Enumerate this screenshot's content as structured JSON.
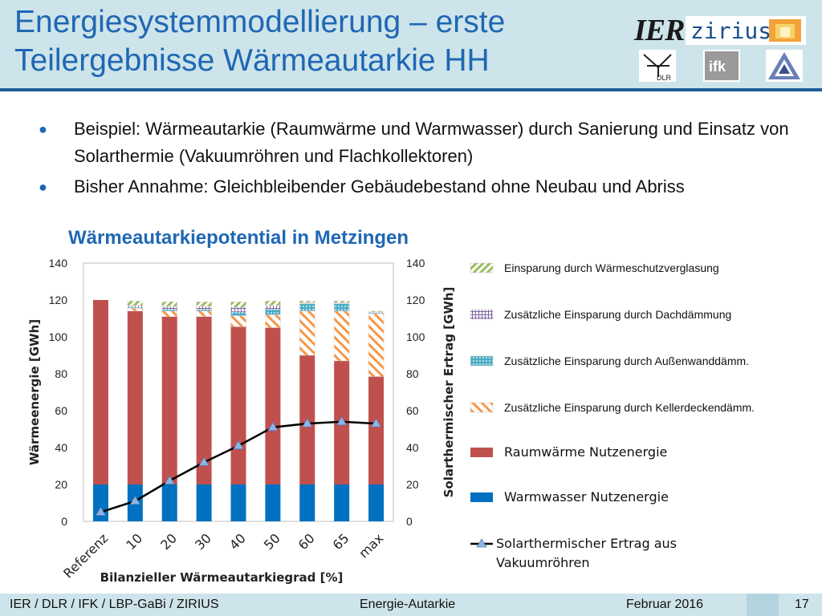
{
  "slide": {
    "title": "Energiesystemmodellierung – erste Teilergebnisse Wärmeautarkie HH",
    "logos": [
      "IER",
      "zirius",
      "DLR",
      "ifk",
      "LBP-GaBi"
    ],
    "bullets": [
      "Beispiel: Wärmeautarkie (Raumwärme und Warmwasser) durch Sanierung und Einsatz von Solarthermie (Vakuumröhren und Flachkollektoren)",
      "Bisher Annahme: Gleichbleibender Gebäudebestand ohne Neubau und Abriss"
    ],
    "bullet_symbol": "●"
  },
  "footer": {
    "left": "IER / DLR / IFK / LBP-GaBi / ZIRIUS",
    "center": "Energie-Autarkie",
    "date": "Februar 2016",
    "page": "17"
  },
  "colors": {
    "title": "#1f67b4",
    "header_bg": "#cde4ea",
    "raumwaerme": "#c0504d",
    "warmwasser": "#0070c0",
    "fenster": "#9bbb59",
    "dach": "#8064a2",
    "aussenwand": "#4bacc6",
    "kellerdecke": "#f79646",
    "line": "#000000",
    "marker": "#8eb4e3"
  },
  "chart_data": {
    "type": "bar",
    "title": "Wärmeautarkiepotential in Metzingen",
    "xlabel": "Bilanzieller Wärmeautarkiegrad [%]",
    "ylabel": "Wärmeenergie [GWh]",
    "y2label": "Solarthermischer Ertrag [GWh]",
    "categories": [
      "Referenz",
      "10",
      "20",
      "30",
      "40",
      "50",
      "60",
      "65",
      "max"
    ],
    "ylim": [
      0,
      140
    ],
    "y2lim": [
      0,
      140
    ],
    "yticks": [
      0,
      20,
      40,
      60,
      80,
      100,
      120,
      140
    ],
    "stacked": true,
    "grid": false,
    "legend_position": "right",
    "series": [
      {
        "name": "Warmwasser Nutzenergie",
        "axis": "left",
        "values": [
          20,
          20,
          20,
          20,
          20,
          20,
          20,
          20,
          20
        ]
      },
      {
        "name": "Raumwärme Nutzenergie",
        "axis": "left",
        "values": [
          100,
          94,
          91,
          91,
          85.5,
          85,
          70,
          67,
          58.5
        ]
      },
      {
        "name": "Zusätzliche Einsparung durch Kellerdeckendämm.",
        "axis": "left",
        "values": [
          0,
          1.5,
          3,
          3,
          6,
          7,
          24,
          27,
          34
        ]
      },
      {
        "name": "Zusätzliche Einsparung durch Außenwanddämm.",
        "axis": "left",
        "values": [
          0,
          0.5,
          1,
          1,
          2,
          3,
          4,
          4,
          0.5
        ]
      },
      {
        "name": "Zusätzliche Einsparung durch Dachdämmung",
        "axis": "left",
        "values": [
          0,
          1,
          1.5,
          1.5,
          2.5,
          2,
          0.5,
          0.5,
          0.5
        ]
      },
      {
        "name": "Einsparung durch Wärmeschutzverglasung",
        "axis": "left",
        "values": [
          0,
          2.5,
          2.5,
          2.5,
          3,
          2.5,
          1,
          1,
          0.5
        ]
      },
      {
        "name": "Solarthermischer Ertrag aus Vakuumröhren",
        "axis": "right",
        "type": "line",
        "values": [
          5,
          11,
          22,
          32,
          41,
          51,
          53,
          54,
          53
        ]
      }
    ],
    "legend": [
      {
        "label": "Einsparung durch Wärmeschutzverglasung",
        "swatch": "pattern-fenster"
      },
      {
        "label": "Zusätzliche Einsparung durch Dachdämmung",
        "swatch": "pattern-dach"
      },
      {
        "label": "Zusätzliche Einsparung durch Außenwanddämm.",
        "swatch": "pattern-aussenwand"
      },
      {
        "label": "Zusätzliche Einsparung durch Kellerdeckendämm.",
        "swatch": "pattern-keller"
      },
      {
        "label": "Raumwärme Nutzenergie",
        "swatch": "solid-red"
      },
      {
        "label": "Warmwasser Nutzenergie",
        "swatch": "solid-blue"
      },
      {
        "label": "Solarthermischer Ertrag aus Vakuumröhren",
        "swatch": "line-marker"
      }
    ]
  }
}
